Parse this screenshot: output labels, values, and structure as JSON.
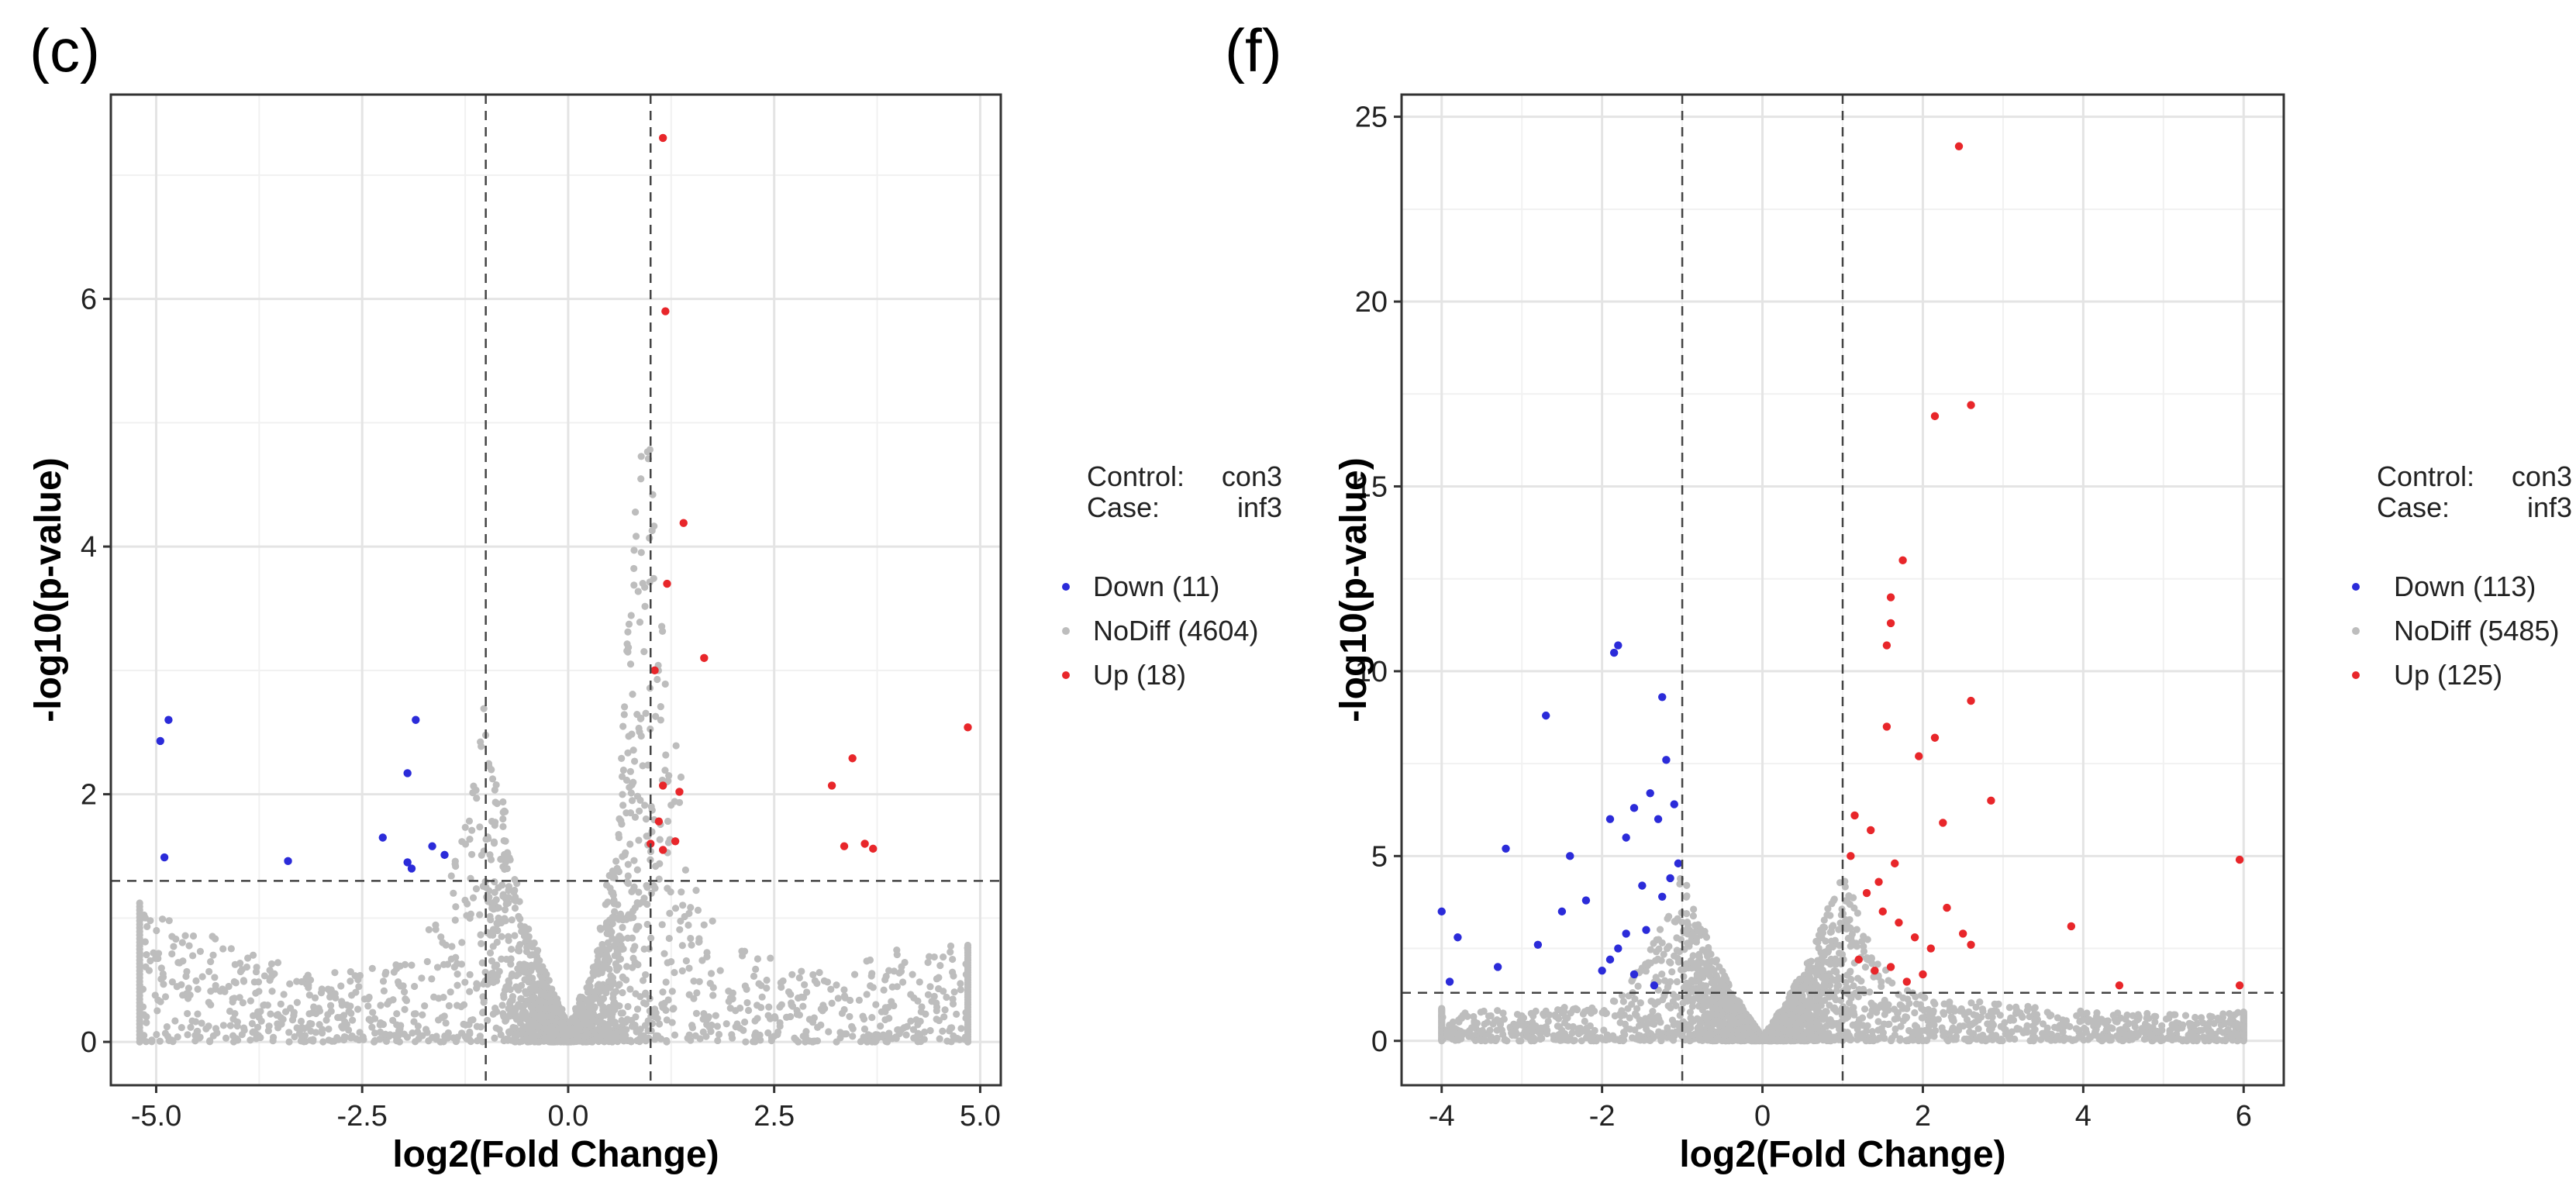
{
  "chart_data": [
    {
      "panel": "(c)",
      "type": "scatter",
      "subtype": "volcano",
      "xlabel": "log2(Fold Change)",
      "ylabel": "-log10(p-value)",
      "xlim": [
        -5.55,
        5.25
      ],
      "ylim": [
        -0.35,
        7.65
      ],
      "xticks": [
        -5.0,
        -2.5,
        0.0,
        2.5,
        5.0
      ],
      "xtick_labels": [
        "-5.0",
        "-2.5",
        "0.0",
        "2.5",
        "5.0"
      ],
      "yticks": [
        0,
        2,
        4,
        6
      ],
      "ytick_labels": [
        "0",
        "2",
        "4",
        "6"
      ],
      "thresholds": {
        "x": [
          -1,
          1
        ],
        "y": 1.3
      },
      "grid": true,
      "legend": {
        "placement": "right",
        "control_label": "Control:",
        "control_value": "con3",
        "case_label": "Case:",
        "case_value": "inf3",
        "entries": [
          {
            "name": "Down",
            "label": "Down (11)",
            "color": "#2b2bd9"
          },
          {
            "name": "NoDiff",
            "label": "NoDiff (4604)",
            "color": "#bdbdbd"
          },
          {
            "name": "Up",
            "label": "Up (18)",
            "color": "#e8262a"
          }
        ]
      },
      "series": [
        {
          "name": "Down",
          "color": "#2b2bd9",
          "x": [
            -4.95,
            -4.85,
            -4.9,
            -3.4,
            -2.25,
            -1.95,
            -1.85,
            -1.95,
            -1.9,
            -1.65,
            -1.5
          ],
          "y": [
            2.43,
            2.6,
            1.49,
            1.46,
            1.65,
            2.17,
            2.6,
            1.45,
            1.4,
            1.58,
            1.51
          ]
        },
        {
          "name": "Up",
          "color": "#e8262a",
          "x": [
            1.15,
            1.18,
            1.4,
            1.2,
            1.65,
            1.05,
            1.15,
            1.35,
            1.15,
            3.2,
            3.45,
            3.35,
            3.6,
            3.7,
            4.85,
            1.1,
            1.3,
            1.0
          ],
          "y": [
            7.3,
            5.9,
            4.19,
            3.7,
            3.1,
            3.0,
            2.07,
            2.02,
            1.55,
            2.07,
            2.29,
            1.58,
            1.6,
            1.56,
            2.54,
            1.78,
            1.62,
            1.6
          ]
        }
      ],
      "nodiff_envelope": {
        "description_x": [
          -5.2,
          -4.0,
          -3.0,
          -2.0,
          -1.5,
          -1.0,
          -0.6,
          -0.3,
          0.0,
          0.3,
          0.6,
          0.85,
          1.0,
          1.5,
          2.0,
          3.0,
          4.0,
          4.85
        ],
        "max_y": [
          1.15,
          0.75,
          0.55,
          0.65,
          1.1,
          2.8,
          1.2,
          0.6,
          0.15,
          0.6,
          1.8,
          4.85,
          4.8,
          1.3,
          0.8,
          0.55,
          0.75,
          0.8
        ]
      }
    },
    {
      "panel": "(f)",
      "type": "scatter",
      "subtype": "volcano",
      "xlabel": "log2(Fold Change)",
      "ylabel": "-log10(p-value)",
      "xlim": [
        -4.5,
        6.5
      ],
      "ylim": [
        -1.2,
        25.6
      ],
      "xticks": [
        -4,
        -2,
        0,
        2,
        4,
        6
      ],
      "xtick_labels": [
        "-4",
        "-2",
        "0",
        "2",
        "4",
        "6"
      ],
      "yticks": [
        0,
        5,
        10,
        15,
        20,
        25
      ],
      "ytick_labels": [
        "0",
        "5",
        "10",
        "15",
        "20",
        "25"
      ],
      "thresholds": {
        "x": [
          -1,
          1
        ],
        "y": 1.3
      },
      "grid": true,
      "legend": {
        "placement": "right",
        "control_label": "Control:",
        "control_value": "con3",
        "case_label": "Case:",
        "case_value": "inf3",
        "entries": [
          {
            "name": "Down",
            "label": "Down (113)",
            "color": "#2b2bd9"
          },
          {
            "name": "NoDiff",
            "label": "NoDiff (5485)",
            "color": "#bdbdbd"
          },
          {
            "name": "Up",
            "label": "Up (125)",
            "color": "#e8262a"
          }
        ]
      },
      "series": [
        {
          "name": "Down",
          "color": "#2b2bd9",
          "x": [
            -1.8,
            -1.85,
            -2.7,
            -1.25,
            -1.2,
            -1.1,
            -1.3,
            -1.4,
            -1.6,
            -1.9,
            -1.05,
            -3.2,
            -2.4,
            -1.7,
            -2.5,
            -4.0,
            -3.8,
            -3.9,
            -3.3,
            -2.8,
            -2.2,
            -1.5,
            -1.15,
            -1.25,
            -1.45,
            -1.8,
            -1.9,
            -2.0,
            -1.35,
            -1.6,
            -1.7
          ],
          "y": [
            10.7,
            10.5,
            8.8,
            9.3,
            7.6,
            6.4,
            6.0,
            6.7,
            6.3,
            6.0,
            4.8,
            5.2,
            5.0,
            5.5,
            3.5,
            3.5,
            2.8,
            1.6,
            2.0,
            2.6,
            3.8,
            4.2,
            4.4,
            3.9,
            3.0,
            2.5,
            2.2,
            1.9,
            1.5,
            1.8,
            2.9
          ]
        },
        {
          "name": "Up",
          "color": "#e8262a",
          "x": [
            2.45,
            2.6,
            2.15,
            1.75,
            1.6,
            1.6,
            1.55,
            1.55,
            2.6,
            2.15,
            1.95,
            2.85,
            2.25,
            1.65,
            3.85,
            5.95,
            5.95,
            4.45,
            2.5,
            2.6,
            1.3,
            1.5,
            1.7,
            1.9,
            2.1,
            1.2,
            1.4,
            1.8,
            2.3,
            1.1,
            1.15,
            1.35,
            1.45,
            1.6,
            2.0
          ],
          "y": [
            24.2,
            17.2,
            16.9,
            13.0,
            12.0,
            11.3,
            10.7,
            8.5,
            9.2,
            8.2,
            7.7,
            6.5,
            5.9,
            4.8,
            3.1,
            4.9,
            1.5,
            1.5,
            2.9,
            2.6,
            4.0,
            3.5,
            3.2,
            2.8,
            2.5,
            2.2,
            1.9,
            1.6,
            3.6,
            5.0,
            6.1,
            5.7,
            4.3,
            2.0,
            1.8
          ]
        }
      ],
      "nodiff_envelope": {
        "description_x": [
          -4.0,
          -3.0,
          -2.0,
          -1.5,
          -1.0,
          -0.6,
          -0.3,
          0.0,
          0.3,
          0.6,
          1.0,
          1.5,
          2.0,
          3.0,
          4.0,
          5.4,
          6.0
        ],
        "max_y": [
          0.9,
          0.8,
          1.0,
          2.0,
          4.6,
          2.3,
          1.1,
          0.1,
          1.1,
          2.3,
          4.7,
          2.0,
          1.2,
          1.0,
          0.8,
          0.7,
          0.8
        ]
      }
    }
  ]
}
